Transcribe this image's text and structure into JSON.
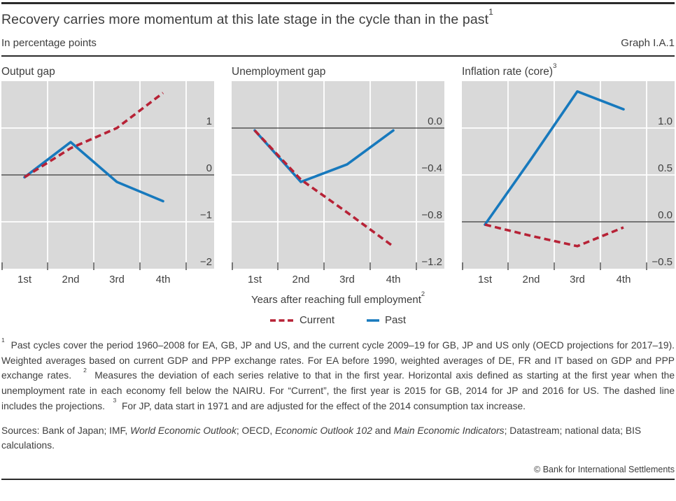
{
  "header": {
    "title": "Recovery carries more momentum at this late stage in the cycle than in the past",
    "title_sup": "1",
    "subtitle_left": "In percentage points",
    "subtitle_right": "Graph I.A.1"
  },
  "colors": {
    "current": "#b72236",
    "past": "#1779bd",
    "plot_bg": "#d9d9d9",
    "grid": "#ffffff",
    "zero_line": "#3a3a3a",
    "tick": "#4a4a4a",
    "text": "#404040"
  },
  "x_axis": {
    "title": "Years after reaching full employment",
    "title_sup": "2"
  },
  "legend": [
    {
      "label": "Current",
      "style": "dashed",
      "color_key": "current"
    },
    {
      "label": "Past",
      "style": "solid",
      "color_key": "past"
    }
  ],
  "chart_data": [
    {
      "type": "line",
      "title": "Output gap",
      "title_sup": "",
      "categories": [
        "1st",
        "2nd",
        "3rd",
        "4th"
      ],
      "ylim": [
        -2,
        2
      ],
      "grid": true,
      "yticks": [
        {
          "v": 1,
          "label": "1"
        },
        {
          "v": 0,
          "label": "0"
        },
        {
          "v": -1,
          "label": "−1"
        },
        {
          "v": -2,
          "label": "−2"
        }
      ],
      "series": [
        {
          "name": "Current",
          "style": "dashed",
          "color_key": "current",
          "values": [
            -0.05,
            0.57,
            1.0,
            1.75
          ]
        },
        {
          "name": "Past",
          "style": "solid",
          "color_key": "past",
          "values": [
            -0.05,
            0.7,
            -0.15,
            -0.56
          ]
        }
      ]
    },
    {
      "type": "line",
      "title": "Unemployment gap",
      "title_sup": "",
      "categories": [
        "1st",
        "2nd",
        "3rd",
        "4th"
      ],
      "ylim": [
        -1.2,
        0.4
      ],
      "grid": true,
      "yticks": [
        {
          "v": 0,
          "label": "0.0"
        },
        {
          "v": -0.4,
          "label": "−0.4"
        },
        {
          "v": -0.8,
          "label": "−0.8"
        },
        {
          "v": -1.2,
          "label": "−1.2"
        }
      ],
      "series": [
        {
          "name": "Current",
          "style": "dashed",
          "color_key": "current",
          "values": [
            -0.02,
            -0.44,
            -0.72,
            -1.01
          ]
        },
        {
          "name": "Past",
          "style": "solid",
          "color_key": "past",
          "values": [
            -0.02,
            -0.46,
            -0.31,
            -0.02
          ]
        }
      ]
    },
    {
      "type": "line",
      "title": "Inflation rate (core)",
      "title_sup": "3",
      "categories": [
        "1st",
        "2nd",
        "3rd",
        "4th"
      ],
      "ylim": [
        -0.5,
        1.5
      ],
      "grid": true,
      "yticks": [
        {
          "v": 1.0,
          "label": "1.0"
        },
        {
          "v": 0.5,
          "label": "0.5"
        },
        {
          "v": 0,
          "label": "0.0"
        },
        {
          "v": -0.5,
          "label": "−0.5"
        }
      ],
      "series": [
        {
          "name": "Current",
          "style": "dashed",
          "color_key": "current",
          "values": [
            -0.03,
            -0.15,
            -0.26,
            -0.06
          ]
        },
        {
          "name": "Past",
          "style": "solid",
          "color_key": "past",
          "values": [
            -0.03,
            0.67,
            1.39,
            1.2
          ]
        }
      ]
    }
  ],
  "footnotes": [
    {
      "sup": "1"
    },
    {
      "t": "  Past cycles cover the period 1960–2008 for EA, GB, JP and US, and the current cycle 2009–19 for GB, JP and US only (OECD projections for 2017–19). Weighted averages based on current GDP and PPP exchange rates. For EA before 1990, weighted averages of DE, FR and IT based on GDP and PPP exchange rates.   "
    },
    {
      "sup": "2"
    },
    {
      "t": "  Measures the deviation of each series relative to that in the first year. Horizontal axis defined as starting at the first year when the unemployment rate in each economy fell below the NAIRU. For “Current”, the first year is 2015 for GB, 2014 for JP and 2016 for US. The dashed line includes the projections.   "
    },
    {
      "sup": "3"
    },
    {
      "t": "  For JP, data start in 1971 and are adjusted for the effect of the 2014 consumption tax increase."
    }
  ],
  "sources": [
    {
      "t": "Sources: Bank of Japan; IMF, "
    },
    {
      "i": "World Economic Outlook"
    },
    {
      "t": "; OECD, "
    },
    {
      "i": "Economic Outlook 102"
    },
    {
      "t": " and "
    },
    {
      "i": "Main Economic Indicators"
    },
    {
      "t": "; Datastream; national data; BIS calculations."
    }
  ],
  "copyright": "© Bank for International Settlements"
}
